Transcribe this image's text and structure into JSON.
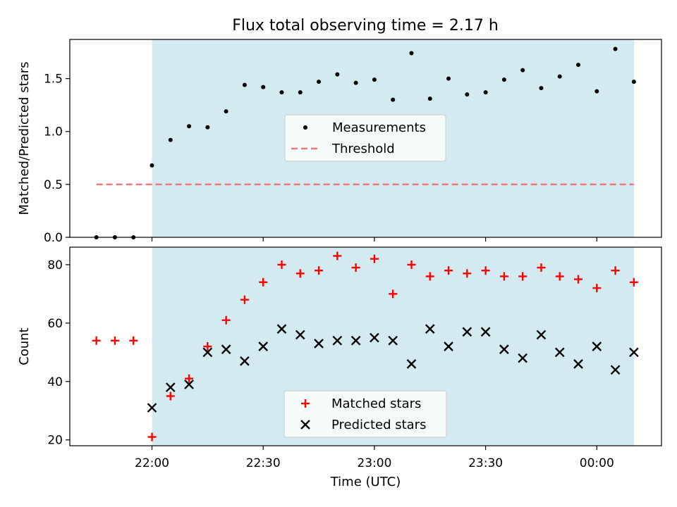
{
  "title": "Flux total observing time = 2.17 h",
  "colors": {
    "shade": "#d3eaf0",
    "threshold": "#f07878",
    "matched": "#ff0000",
    "predicted": "#000000",
    "measurement": "#000000"
  },
  "chart_data": [
    {
      "type": "scatter",
      "ylabel": "Matched/Predicted stars",
      "ylim": [
        0,
        1.87
      ],
      "yticks": [
        0.0,
        0.5,
        1.0,
        1.5
      ],
      "ytick_labels": [
        "0.0",
        "0.5",
        "1.0",
        "1.5"
      ],
      "shaded_x": [
        "22:00",
        "00:10"
      ],
      "x": [
        "21:45",
        "21:50",
        "21:55",
        "22:00",
        "22:05",
        "22:10",
        "22:15",
        "22:20",
        "22:25",
        "22:30",
        "22:35",
        "22:40",
        "22:45",
        "22:50",
        "22:55",
        "23:00",
        "23:05",
        "23:10",
        "23:15",
        "23:20",
        "23:25",
        "23:30",
        "23:35",
        "23:40",
        "23:45",
        "23:50",
        "23:55",
        "00:00",
        "00:05",
        "00:10"
      ],
      "series": [
        {
          "name": "Measurements",
          "marker": "dot",
          "values": [
            0.0,
            0.0,
            0.0,
            0.68,
            0.92,
            1.05,
            1.04,
            1.19,
            1.44,
            1.42,
            1.37,
            1.37,
            1.47,
            1.54,
            1.46,
            1.49,
            1.3,
            1.74,
            1.31,
            1.5,
            1.35,
            1.37,
            1.49,
            1.58,
            1.41,
            1.52,
            1.63,
            1.38,
            1.78,
            1.47
          ]
        },
        {
          "name": "Threshold",
          "marker": "dashed-line",
          "x": [
            "21:45",
            "00:10"
          ],
          "values": [
            0.5,
            0.5
          ]
        }
      ],
      "legend": "center"
    },
    {
      "type": "scatter",
      "xlabel": "Time (UTC)",
      "ylabel": "Count",
      "ylim": [
        18,
        86
      ],
      "yticks": [
        20,
        40,
        60,
        80
      ],
      "ytick_labels": [
        "20",
        "40",
        "60",
        "80"
      ],
      "xticks": [
        "22:00",
        "22:30",
        "23:00",
        "23:30",
        "00:00"
      ],
      "shaded_x": [
        "22:00",
        "00:10"
      ],
      "x": [
        "21:45",
        "21:50",
        "21:55",
        "22:00",
        "22:05",
        "22:10",
        "22:15",
        "22:20",
        "22:25",
        "22:30",
        "22:35",
        "22:40",
        "22:45",
        "22:50",
        "22:55",
        "23:00",
        "23:05",
        "23:10",
        "23:15",
        "23:20",
        "23:25",
        "23:30",
        "23:35",
        "23:40",
        "23:45",
        "23:50",
        "23:55",
        "00:00",
        "00:05",
        "00:10"
      ],
      "series": [
        {
          "name": "Matched stars",
          "marker": "plus",
          "values": [
            54,
            54,
            54,
            21,
            35,
            41,
            52,
            61,
            68,
            74,
            80,
            77,
            78,
            83,
            79,
            82,
            70,
            80,
            76,
            78,
            77,
            78,
            76,
            76,
            79,
            76,
            75,
            72,
            78,
            74
          ]
        },
        {
          "name": "Predicted stars",
          "marker": "x",
          "x": [
            "22:00",
            "22:05",
            "22:10",
            "22:15",
            "22:20",
            "22:25",
            "22:30",
            "22:35",
            "22:40",
            "22:45",
            "22:50",
            "22:55",
            "23:00",
            "23:05",
            "23:10",
            "23:15",
            "23:20",
            "23:25",
            "23:30",
            "23:35",
            "23:40",
            "23:45",
            "23:50",
            "23:55",
            "00:00",
            "00:05",
            "00:10"
          ],
          "values": [
            31,
            38,
            39,
            50,
            51,
            47,
            52,
            58,
            56,
            53,
            54,
            54,
            55,
            54,
            46,
            58,
            52,
            57,
            57,
            51,
            48,
            56,
            50,
            46,
            52,
            44,
            50
          ]
        }
      ],
      "legend": "lower center"
    }
  ]
}
